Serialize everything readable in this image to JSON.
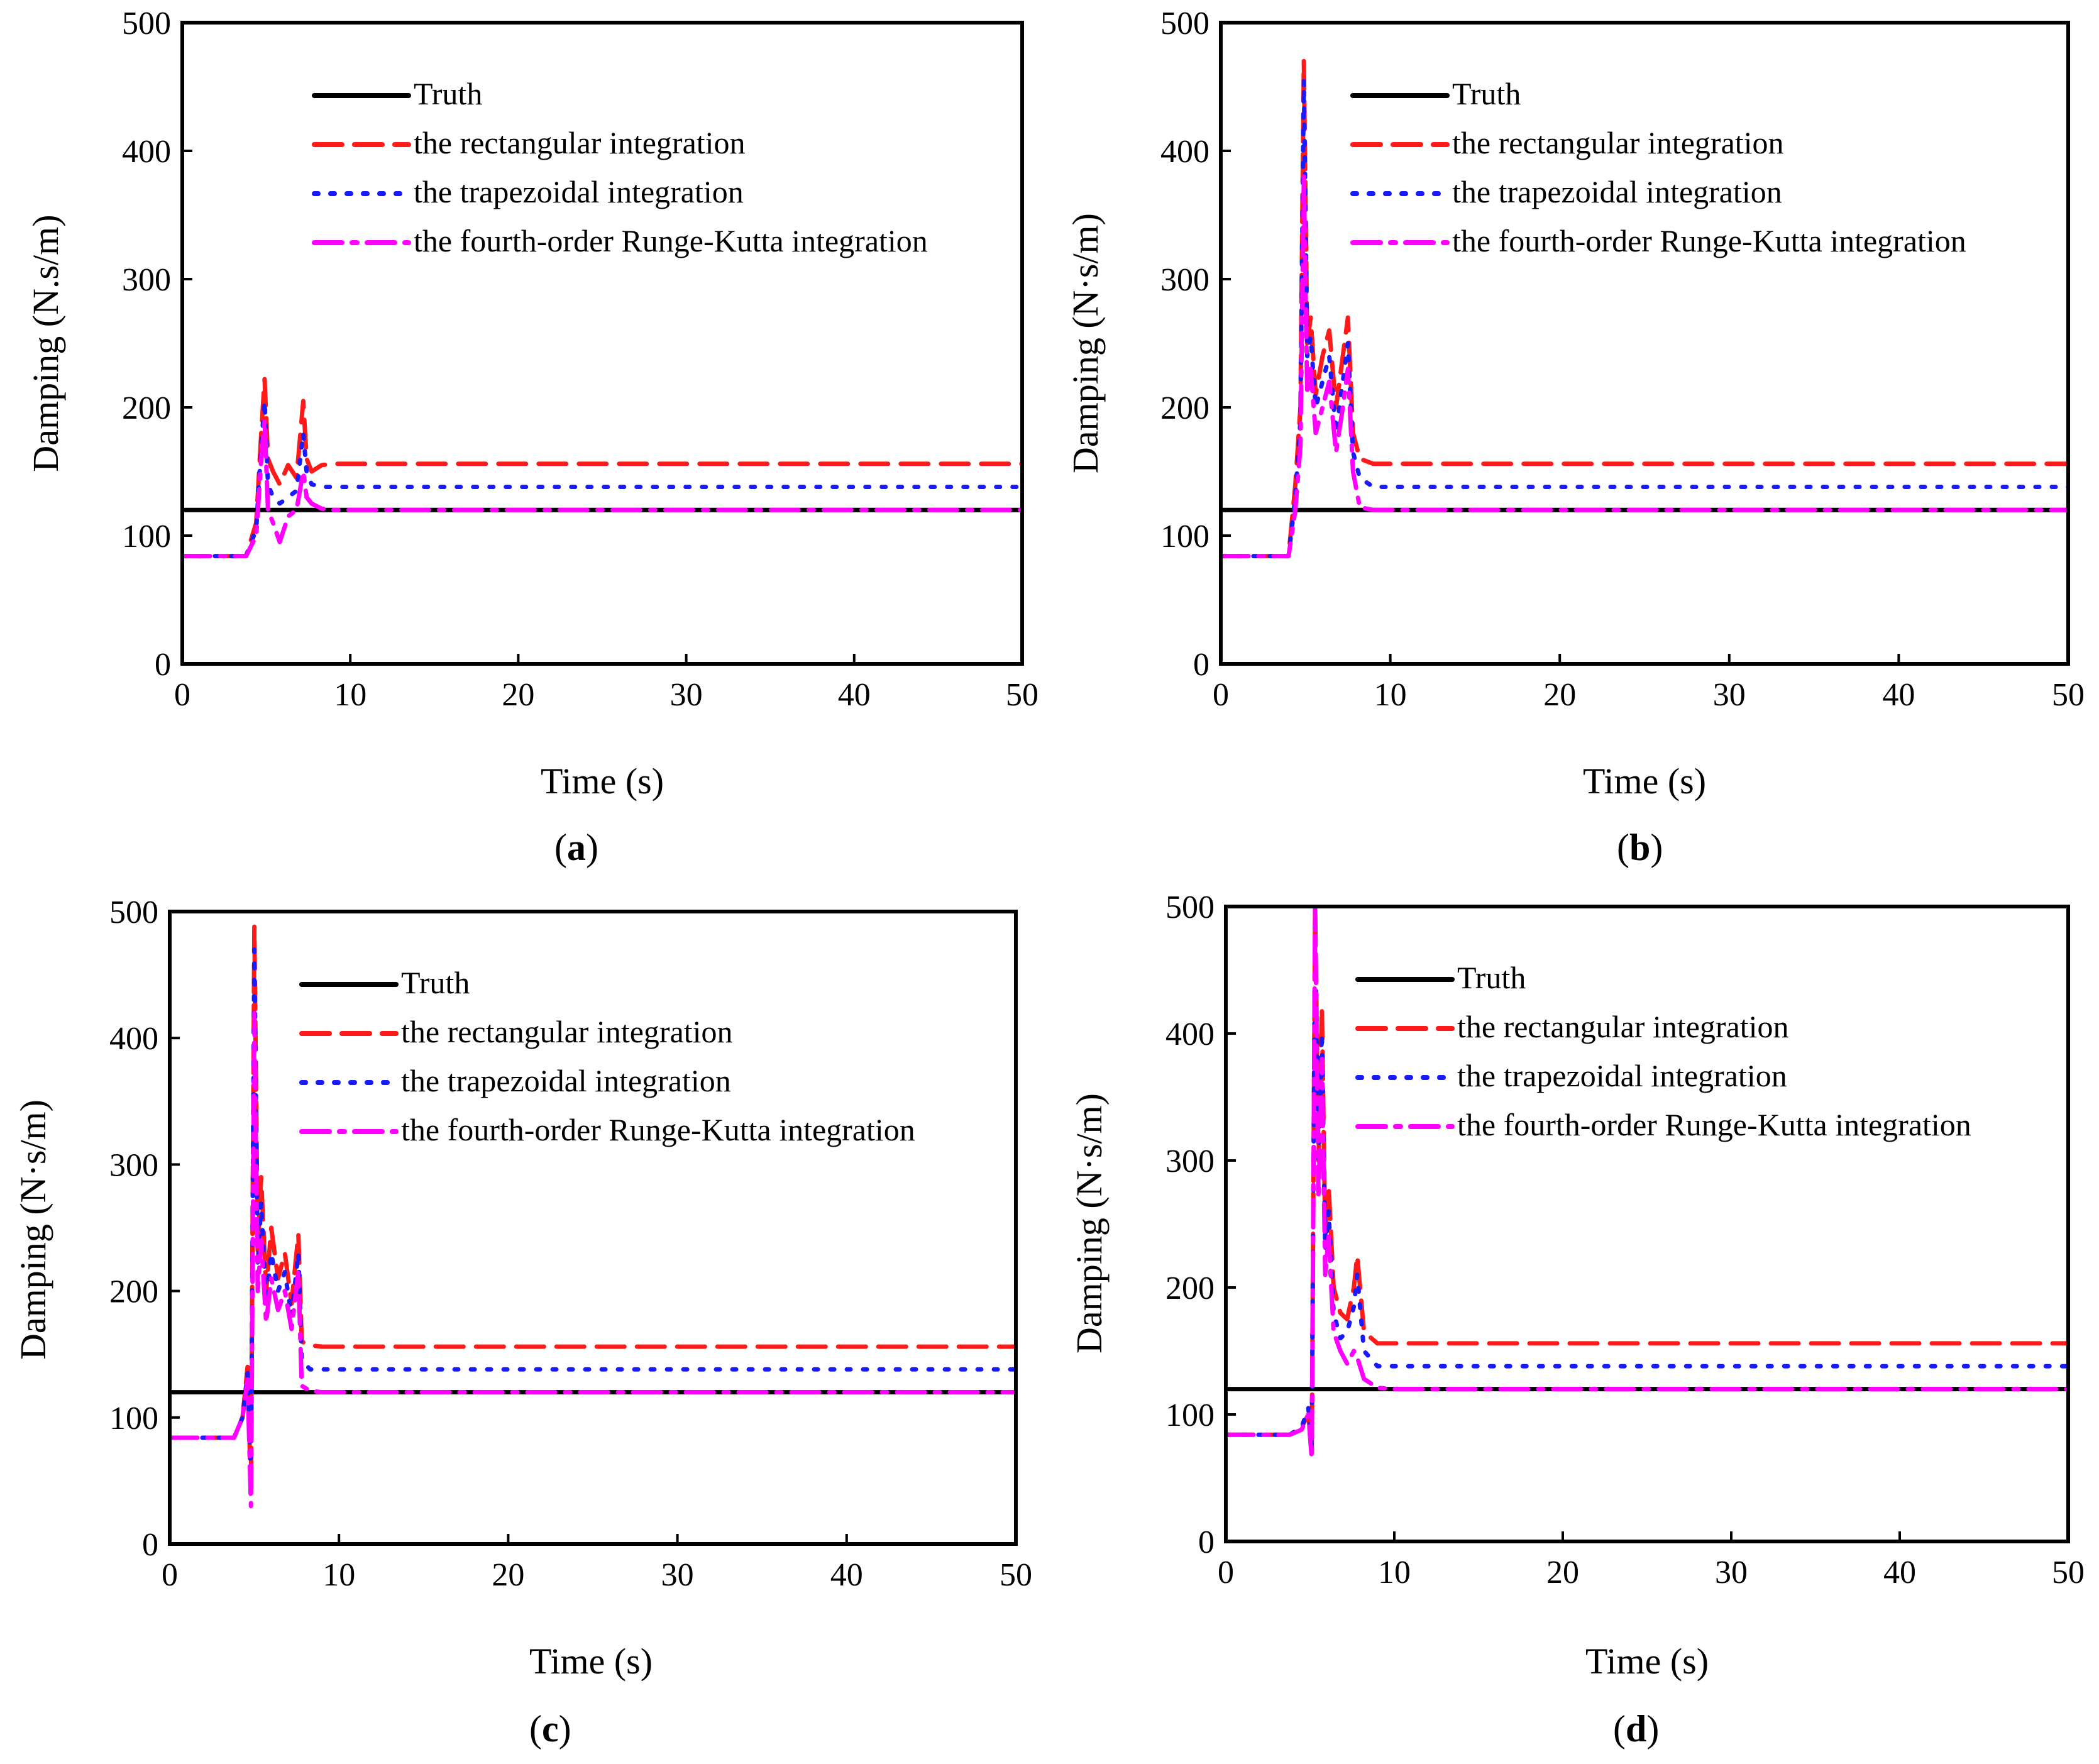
{
  "colors": {
    "truth": "#000000",
    "rect": "#ff1a1a",
    "trap": "#1a1aff",
    "rk4": "#ff00ff"
  },
  "chart_data": [
    {
      "panel": "a",
      "type": "line",
      "xlabel": "Time (s)",
      "ylabel": "Damping (N.s/m)",
      "xlim": [
        0,
        50
      ],
      "ylim": [
        0,
        500
      ],
      "xticks": [
        0,
        10,
        20,
        30,
        40,
        50
      ],
      "yticks": [
        0,
        100,
        200,
        300,
        400,
        500
      ],
      "legend": {
        "position": "top-left"
      },
      "series": [
        {
          "name": "Truth",
          "style": "solid",
          "color": "#000000",
          "x": [
            0,
            50
          ],
          "y": [
            120,
            120
          ]
        },
        {
          "name": "the rectangular integration",
          "style": "dashed",
          "color": "#ff1a1a",
          "x": [
            0,
            3.8,
            4.4,
            4.7,
            4.9,
            5.1,
            5.4,
            5.8,
            6.3,
            6.8,
            7.2,
            7.4,
            7.7,
            8.3,
            9,
            10,
            50
          ],
          "y": [
            84,
            84,
            110,
            180,
            222,
            160,
            150,
            140,
            155,
            145,
            205,
            160,
            150,
            155,
            156,
            156,
            156
          ]
        },
        {
          "name": "the trapezoidal integration",
          "style": "dotted",
          "color": "#1a1aff",
          "x": [
            0,
            3.8,
            4.4,
            4.7,
            4.9,
            5.1,
            5.4,
            5.8,
            6.3,
            6.8,
            7.2,
            7.4,
            7.7,
            8.3,
            9,
            10,
            50
          ],
          "y": [
            84,
            84,
            105,
            170,
            205,
            140,
            130,
            125,
            130,
            135,
            180,
            150,
            140,
            138,
            138,
            138,
            138
          ]
        },
        {
          "name": "the fourth-order Runge-Kutta integration",
          "style": "dashdot",
          "color": "#ff00ff",
          "x": [
            0,
            3.8,
            4.4,
            4.7,
            4.9,
            5.1,
            5.4,
            5.8,
            6.3,
            6.8,
            7.2,
            7.4,
            7.7,
            8.3,
            9,
            10,
            50
          ],
          "y": [
            84,
            84,
            100,
            160,
            190,
            120,
            110,
            95,
            115,
            120,
            150,
            130,
            125,
            121,
            120,
            120,
            120
          ]
        }
      ]
    },
    {
      "panel": "b",
      "type": "line",
      "xlabel": "Time (s)",
      "ylabel": "Damping (N·s/m)",
      "xlim": [
        0,
        50
      ],
      "ylim": [
        0,
        500
      ],
      "xticks": [
        0,
        10,
        20,
        30,
        40,
        50
      ],
      "yticks": [
        0,
        100,
        200,
        300,
        400,
        500
      ],
      "legend": {
        "position": "top-right"
      },
      "series": [
        {
          "name": "Truth",
          "style": "solid",
          "color": "#000000",
          "x": [
            0,
            50
          ],
          "y": [
            120,
            120
          ]
        },
        {
          "name": "the rectangular integration",
          "style": "dashed",
          "color": "#ff1a1a",
          "x": [
            0,
            4,
            4.4,
            4.7,
            4.9,
            5.1,
            5.3,
            5.6,
            6,
            6.4,
            6.8,
            7.2,
            7.5,
            7.8,
            8.2,
            9,
            10,
            50
          ],
          "y": [
            84,
            84,
            140,
            200,
            470,
            250,
            270,
            210,
            240,
            260,
            200,
            240,
            270,
            180,
            160,
            156,
            156,
            156
          ]
        },
        {
          "name": "the trapezoidal integration",
          "style": "dotted",
          "color": "#1a1aff",
          "x": [
            0,
            4,
            4.4,
            4.7,
            4.9,
            5.1,
            5.3,
            5.6,
            6,
            6.4,
            6.8,
            7.2,
            7.5,
            7.8,
            8.2,
            9,
            10,
            50
          ],
          "y": [
            84,
            84,
            130,
            190,
            455,
            240,
            255,
            200,
            220,
            240,
            180,
            220,
            250,
            165,
            145,
            138,
            138,
            138
          ]
        },
        {
          "name": "the fourth-order Runge-Kutta integration",
          "style": "dashdot",
          "color": "#ff00ff",
          "x": [
            0,
            4,
            4.4,
            4.7,
            4.9,
            5.1,
            5.3,
            5.6,
            6,
            6.4,
            6.8,
            7.2,
            7.5,
            7.8,
            8.2,
            9,
            10,
            50
          ],
          "y": [
            84,
            84,
            120,
            170,
            380,
            210,
            230,
            180,
            200,
            220,
            165,
            200,
            230,
            150,
            122,
            120,
            120,
            120
          ]
        }
      ]
    },
    {
      "panel": "c",
      "type": "line",
      "xlabel": "Time (s)",
      "ylabel": "Damping (N·s/m)",
      "xlim": [
        0,
        50
      ],
      "ylim": [
        0,
        500
      ],
      "xticks": [
        0,
        10,
        20,
        30,
        40,
        50
      ],
      "yticks": [
        0,
        100,
        200,
        300,
        400,
        500
      ],
      "legend": {
        "position": "top-left"
      },
      "series": [
        {
          "name": "Truth",
          "style": "solid",
          "color": "#000000",
          "x": [
            0,
            50
          ],
          "y": [
            120,
            120
          ]
        },
        {
          "name": "the rectangular integration",
          "style": "dashed",
          "color": "#ff1a1a",
          "x": [
            0,
            3.8,
            4.3,
            4.6,
            4.8,
            5,
            5.2,
            5.4,
            5.7,
            6,
            6.4,
            6.8,
            7.2,
            7.6,
            7.8,
            8.3,
            9,
            10,
            50
          ],
          "y": [
            84,
            84,
            100,
            140,
            40,
            488,
            230,
            290,
            200,
            250,
            210,
            230,
            190,
            245,
            160,
            157,
            156,
            156,
            156
          ]
        },
        {
          "name": "the trapezoidal integration",
          "style": "dotted",
          "color": "#1a1aff",
          "x": [
            0,
            3.8,
            4.3,
            4.6,
            4.8,
            5,
            5.2,
            5.4,
            5.7,
            6,
            6.4,
            6.8,
            7.2,
            7.6,
            7.8,
            8.3,
            9,
            10,
            50
          ],
          "y": [
            84,
            84,
            100,
            135,
            50,
            470,
            220,
            270,
            190,
            230,
            200,
            215,
            180,
            230,
            145,
            138,
            138,
            138,
            138
          ]
        },
        {
          "name": "the fourth-order Runge-Kutta integration",
          "style": "dashdot",
          "color": "#ff00ff",
          "x": [
            0,
            3.8,
            4.3,
            4.6,
            4.8,
            5,
            5.2,
            5.4,
            5.7,
            6,
            6.4,
            6.8,
            7.2,
            7.6,
            7.8,
            8.3,
            9,
            10,
            50
          ],
          "y": [
            84,
            84,
            100,
            130,
            30,
            420,
            200,
            240,
            175,
            210,
            185,
            200,
            170,
            215,
            125,
            121,
            120,
            120,
            120
          ]
        }
      ]
    },
    {
      "panel": "d",
      "type": "line",
      "xlabel": "Time (s)",
      "ylabel": "Damping (N·s/m)",
      "xlim": [
        0,
        50
      ],
      "ylim": [
        0,
        500
      ],
      "xticks": [
        0,
        10,
        20,
        30,
        40,
        50
      ],
      "yticks": [
        0,
        100,
        200,
        300,
        400,
        500
      ],
      "legend": {
        "position": "top-right"
      },
      "series": [
        {
          "name": "Truth",
          "style": "solid",
          "color": "#000000",
          "x": [
            0,
            50
          ],
          "y": [
            120,
            120
          ]
        },
        {
          "name": "the rectangular integration",
          "style": "dashed",
          "color": "#ff1a1a",
          "x": [
            0,
            3.8,
            4.5,
            4.9,
            5.1,
            5.3,
            5.5,
            5.7,
            5.9,
            6.1,
            6.4,
            6.8,
            7.2,
            7.6,
            7.8,
            8.2,
            9,
            10,
            50
          ],
          "y": [
            84,
            84,
            90,
            100,
            70,
            500,
            300,
            420,
            240,
            280,
            200,
            180,
            175,
            200,
            225,
            165,
            156,
            156,
            156
          ]
        },
        {
          "name": "the trapezoidal integration",
          "style": "dotted",
          "color": "#1a1aff",
          "x": [
            0,
            3.8,
            4.5,
            4.9,
            5.1,
            5.3,
            5.5,
            5.7,
            5.9,
            6.1,
            6.4,
            6.8,
            7.2,
            7.6,
            7.8,
            8.2,
            9,
            10,
            50
          ],
          "y": [
            84,
            84,
            90,
            105,
            75,
            490,
            290,
            400,
            230,
            260,
            180,
            160,
            165,
            185,
            210,
            150,
            138,
            138,
            138
          ]
        },
        {
          "name": "the fourth-order Runge-Kutta integration",
          "style": "dashdot",
          "color": "#ff00ff",
          "x": [
            0,
            3.8,
            4.5,
            4.9,
            5.1,
            5.3,
            5.5,
            5.7,
            5.9,
            6.1,
            6.4,
            6.8,
            7.2,
            7.6,
            7.8,
            8.2,
            9,
            10,
            50
          ],
          "y": [
            84,
            84,
            88,
            100,
            65,
            500,
            270,
            380,
            210,
            240,
            165,
            150,
            140,
            150,
            145,
            128,
            121,
            120,
            120
          ]
        }
      ]
    }
  ]
}
